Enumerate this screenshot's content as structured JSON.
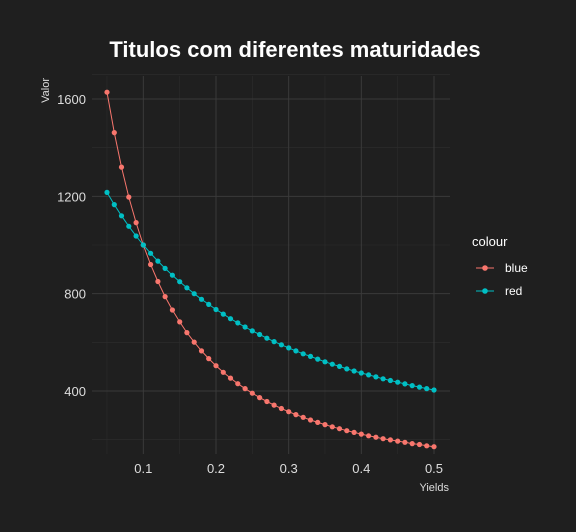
{
  "chart_data": {
    "type": "line",
    "title": "Titulos com diferentes maturidades",
    "xlabel": "Yields",
    "ylabel": "Valor",
    "xlim": [
      0.05,
      0.5
    ],
    "ylim": [
      150,
      1700
    ],
    "x_ticks": [
      0.1,
      0.2,
      0.3,
      0.4,
      0.5
    ],
    "x_tick_labels": [
      "0.1",
      "0.2",
      "0.3",
      "0.4",
      "0.5"
    ],
    "y_ticks": [
      400,
      800,
      1200,
      1600
    ],
    "y_tick_labels": [
      "400",
      "800",
      "1200",
      "1600"
    ],
    "grid": true,
    "legend": {
      "title": "colour",
      "position": "right"
    },
    "background": "#1f1f1f",
    "x": [
      0.05,
      0.06,
      0.07,
      0.08,
      0.09,
      0.1,
      0.11,
      0.12,
      0.13,
      0.14,
      0.15,
      0.16,
      0.17,
      0.18,
      0.19,
      0.2,
      0.21,
      0.22,
      0.23,
      0.24,
      0.25,
      0.26,
      0.27,
      0.28,
      0.29,
      0.3,
      0.31,
      0.32,
      0.33,
      0.34,
      0.35,
      0.36,
      0.37,
      0.38,
      0.39,
      0.4,
      0.41,
      0.42,
      0.43,
      0.44,
      0.45,
      0.46,
      0.47,
      0.48,
      0.49,
      0.5
    ],
    "series": [
      {
        "name": "blue",
        "color": "#f8766d",
        "values": [
          1628,
          1462,
          1320,
          1197,
          1092,
          1000,
          920,
          850,
          788,
          733,
          684,
          640,
          601,
          565,
          533,
          504,
          477,
          453,
          430,
          410,
          391,
          373,
          357,
          342,
          328,
          315,
          303,
          292,
          281,
          271,
          262,
          253,
          245,
          237,
          230,
          223,
          216,
          210,
          204,
          199,
          194,
          189,
          184,
          180,
          175,
          171
        ]
      },
      {
        "name": "red",
        "color": "#00bfc4",
        "values": [
          1216,
          1166,
          1120,
          1077,
          1037,
          1000,
          966,
          934,
          904,
          876,
          849,
          824,
          800,
          777,
          756,
          735,
          716,
          697,
          680,
          663,
          647,
          632,
          617,
          603,
          590,
          577,
          565,
          553,
          542,
          531,
          520,
          510,
          501,
          491,
          482,
          474,
          466,
          458,
          450,
          443,
          436,
          429,
          422,
          416,
          410,
          404
        ]
      }
    ]
  }
}
